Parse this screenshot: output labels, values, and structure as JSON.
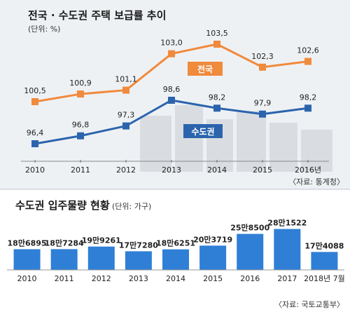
{
  "chart_data": [
    {
      "type": "line",
      "title": "전국 · 수도권 주택 보급률 추이",
      "unit": "(단위: %)",
      "categories": [
        "2010",
        "2011",
        "2012",
        "2013",
        "2014",
        "2015",
        "2016년"
      ],
      "series": [
        {
          "name": "전국",
          "color": "#f08a3c",
          "values": [
            100.5,
            100.9,
            101.1,
            103.0,
            103.5,
            102.3,
            102.6
          ],
          "labels": [
            "100,5",
            "100,9",
            "101,1",
            "103,0",
            "103,5",
            "102,3",
            "102,6"
          ]
        },
        {
          "name": "수도권",
          "color": "#2b64ad",
          "values": [
            96.4,
            96.8,
            97.3,
            98.6,
            98.2,
            97.9,
            98.2
          ],
          "labels": [
            "96,4",
            "96,8",
            "97,3",
            "98,6",
            "98,2",
            "97,9",
            "98,2"
          ]
        }
      ],
      "source": "〈자료: 통계청〉"
    },
    {
      "type": "bar",
      "title": "수도권 입주물량 현황",
      "unit": "(단위: 가구)",
      "color": "#2f7fd6",
      "categories": [
        "2010",
        "2011",
        "2012",
        "2013",
        "2014",
        "2015",
        "2016",
        "2017",
        "2018년 7월"
      ],
      "values": [
        186895,
        187284,
        199261,
        177280,
        186251,
        203719,
        258500,
        281522,
        174088
      ],
      "labels": [
        "18만6895",
        "18만7284",
        "19만9261",
        "17만7280",
        "18만6251",
        "20만3719",
        "25만8500",
        "28만1522",
        "17만4088"
      ],
      "source": "〈자료: 국토교통부〉"
    }
  ]
}
